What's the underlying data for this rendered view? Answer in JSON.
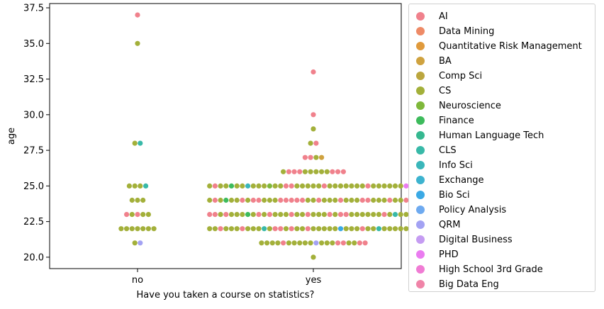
{
  "chart_data": {
    "type": "scatter",
    "subtype": "swarm",
    "xlabel": "Have you taken a course on statistics?",
    "ylabel": "age",
    "categories": [
      "no",
      "yes"
    ],
    "ylim": [
      19.2,
      37.8
    ],
    "yticks": [
      "20.0",
      "22.5",
      "25.0",
      "27.5",
      "30.0",
      "32.5",
      "35.0",
      "37.5"
    ],
    "legend_position": "outside-right",
    "legend": [
      {
        "label": "AI",
        "color": "#f0818c"
      },
      {
        "label": "Data Mining",
        "color": "#ee8a66"
      },
      {
        "label": "Quantitative Risk Management",
        "color": "#e09a3c"
      },
      {
        "label": "BA",
        "color": "#cfa23f"
      },
      {
        "label": "Comp Sci",
        "color": "#bba63e"
      },
      {
        "label": "CS",
        "color": "#a3b03a"
      },
      {
        "label": "Neuroscience",
        "color": "#7fb83b"
      },
      {
        "label": "Finance",
        "color": "#3dbb5c"
      },
      {
        "label": "Human Language Tech",
        "color": "#36b890"
      },
      {
        "label": "CLS",
        "color": "#38b9a8"
      },
      {
        "label": "Info Sci",
        "color": "#3ab6ba"
      },
      {
        "label": "Exchange",
        "color": "#3db3cf"
      },
      {
        "label": "Bio Sci",
        "color": "#3ba9e5"
      },
      {
        "label": "Policy Analysis",
        "color": "#6eaaf0"
      },
      {
        "label": "QRM",
        "color": "#a3a2f3"
      },
      {
        "label": "Digital Business",
        "color": "#c59cf2"
      },
      {
        "label": "PHD",
        "color": "#ea7cf0"
      },
      {
        "label": "High School 3rd Grade",
        "color": "#f07cd4"
      },
      {
        "label": "Big Data Eng",
        "color": "#f084a8"
      }
    ],
    "series": [
      {
        "category": "no",
        "points": [
          {
            "y": 37,
            "colors": [
              "AI"
            ]
          },
          {
            "y": 35,
            "colors": [
              "CS"
            ]
          },
          {
            "y": 28,
            "colors": [
              "CS",
              "CLS"
            ]
          },
          {
            "y": 25,
            "colors": [
              "CS",
              "CS",
              "CS",
              "CLS"
            ]
          },
          {
            "y": 24,
            "colors": [
              "CS",
              "CS",
              "CS"
            ]
          },
          {
            "y": 23,
            "colors": [
              "AI",
              "CS",
              "AI",
              "CS",
              "CS"
            ]
          },
          {
            "y": 22,
            "colors": [
              "CS",
              "CS",
              "CS",
              "CS",
              "CS",
              "CS",
              "CS"
            ]
          },
          {
            "y": 21,
            "colors": [
              "CS",
              "QRM"
            ]
          }
        ]
      },
      {
        "category": "yes",
        "points": [
          {
            "y": 33,
            "colors": [
              "AI"
            ]
          },
          {
            "y": 30,
            "colors": [
              "AI"
            ]
          },
          {
            "y": 29,
            "colors": [
              "CS"
            ]
          },
          {
            "y": 28,
            "colors": [
              "CS",
              "AI"
            ]
          },
          {
            "y": 27,
            "colors": [
              "AI",
              "AI",
              "CS",
              "BA"
            ]
          },
          {
            "y": 26,
            "colors": [
              "CS",
              "AI",
              "AI",
              "AI",
              "CS",
              "CS",
              "CS",
              "CS",
              "CS",
              "AI",
              "AI",
              "AI"
            ]
          },
          {
            "y": 25,
            "colors": [
              "CS",
              "AI",
              "CS",
              "CS",
              "Finance",
              "CS",
              "CS",
              "Info Sci",
              "CS",
              "CS",
              "CS",
              "Neuroscience",
              "CS",
              "CS",
              "AI",
              "AI",
              "CS",
              "CS",
              "CS",
              "CS",
              "CS",
              "AI",
              "CS",
              "CS",
              "CS",
              "CS",
              "CS",
              "CS",
              "CS",
              "AI",
              "CS",
              "CS",
              "CS",
              "CS",
              "CS",
              "CS",
              "PHD",
              "Big Data Eng",
              "PHD"
            ]
          },
          {
            "y": 24,
            "colors": [
              "CS",
              "AI",
              "CS",
              "Finance",
              "CS",
              "CS",
              "AI",
              "CS",
              "AI",
              "AI",
              "CS",
              "CS",
              "CS",
              "AI",
              "AI",
              "AI",
              "AI",
              "AI",
              "CS",
              "CS",
              "AI",
              "CS",
              "CS",
              "CS",
              "AI",
              "CS",
              "CS",
              "CS",
              "AI",
              "AI",
              "CS",
              "CS",
              "CS",
              "AI",
              "CS",
              "CS",
              "AI",
              "CS",
              "CS"
            ]
          },
          {
            "y": 23,
            "colors": [
              "AI",
              "AI",
              "CS",
              "AI",
              "CS",
              "CS",
              "CS",
              "Finance",
              "CS",
              "AI",
              "CS",
              "AI",
              "CS",
              "CS",
              "CS",
              "AI",
              "CS",
              "CS",
              "AI",
              "CS",
              "CS",
              "CS",
              "AI",
              "CS",
              "AI",
              "AI",
              "CS",
              "CS",
              "CS",
              "CS",
              "CS",
              "CS",
              "AI",
              "CS",
              "CLS",
              "CS",
              "CS",
              "AI",
              "CS"
            ]
          },
          {
            "y": 22,
            "colors": [
              "CS",
              "CS",
              "AI",
              "CS",
              "CS",
              "CS",
              "AI",
              "CS",
              "CS",
              "CS",
              "CLS",
              "CS",
              "AI",
              "AI",
              "CS",
              "AI",
              "CS",
              "CS",
              "AI",
              "CS",
              "CS",
              "CS",
              "CS",
              "CS",
              "Bio Sci",
              "CS",
              "CS",
              "CS",
              "AI",
              "CS",
              "CS",
              "CLS",
              "CS",
              "CS",
              "CS",
              "CS",
              "CS",
              "AI",
              "CS"
            ]
          },
          {
            "y": 21,
            "colors": [
              "CS",
              "CS",
              "CS",
              "CS",
              "AI",
              "CS",
              "CS",
              "CS",
              "CS",
              "CS",
              "QRM",
              "CS",
              "CS",
              "CS",
              "AI",
              "AI",
              "CS",
              "CS",
              "AI",
              "AI"
            ]
          },
          {
            "y": 20,
            "colors": [
              "CS"
            ]
          }
        ]
      }
    ]
  }
}
